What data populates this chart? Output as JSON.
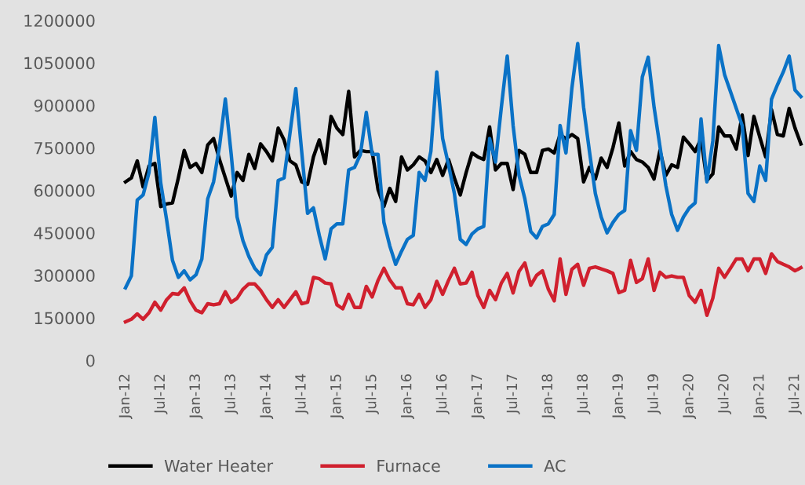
{
  "chart_data": {
    "type": "line",
    "categories": [
      "Jan-12",
      null,
      null,
      null,
      null,
      null,
      "Jul-12",
      null,
      null,
      null,
      null,
      null,
      "Jan-13",
      null,
      null,
      null,
      null,
      null,
      "Jul-13",
      null,
      null,
      null,
      null,
      null,
      "Jan-14",
      null,
      null,
      null,
      null,
      null,
      "Jul-14",
      null,
      null,
      null,
      null,
      null,
      "Jan-15",
      null,
      null,
      null,
      null,
      null,
      "Jul-15",
      null,
      null,
      null,
      null,
      null,
      "Jan-16",
      null,
      null,
      null,
      null,
      null,
      "Jul-16",
      null,
      null,
      null,
      null,
      null,
      "Jan-17",
      null,
      null,
      null,
      null,
      null,
      "Jul-17",
      null,
      null,
      null,
      null,
      null,
      "Jan-18",
      null,
      null,
      null,
      null,
      null,
      "Jul-18",
      null,
      null,
      null,
      null,
      null,
      "Jan-19",
      null,
      null,
      null,
      null,
      null,
      "Jul-19",
      null,
      null,
      null,
      null,
      null,
      "Jan-20",
      null,
      null,
      null,
      null,
      null,
      "Jul-20",
      null,
      null,
      null,
      null,
      null,
      "Jan-21",
      null,
      null,
      null,
      null,
      null,
      "Jul-21",
      null
    ],
    "series": [
      {
        "name": "Water Heater",
        "color": "#000000",
        "values": [
          630000,
          644000,
          704000,
          612000,
          686000,
          695000,
          543000,
          552000,
          556000,
          644000,
          741000,
          681000,
          695000,
          663000,
          760000,
          783000,
          709000,
          644000,
          580000,
          663000,
          635000,
          727000,
          677000,
          764000,
          737000,
          704000,
          820000,
          778000,
          704000,
          690000,
          630000,
          621000,
          718000,
          778000,
          695000,
          861000,
          820000,
          797000,
          949000,
          718000,
          741000,
          737000,
          737000,
          603000,
          543000,
          607000,
          561000,
          718000,
          672000,
          690000,
          718000,
          704000,
          663000,
          709000,
          653000,
          709000,
          644000,
          584000,
          663000,
          732000,
          718000,
          709000,
          824000,
          672000,
          695000,
          695000,
          603000,
          741000,
          727000,
          663000,
          663000,
          741000,
          746000,
          732000,
          797000,
          782000,
          797000,
          783000,
          630000,
          681000,
          640000,
          714000,
          681000,
          751000,
          838000,
          686000,
          737000,
          709000,
          700000,
          681000,
          640000,
          741000,
          653000,
          690000,
          681000,
          788000,
          764000,
          737000,
          783000,
          635000,
          658000,
          824000,
          792000,
          792000,
          746000,
          866000,
          723000,
          861000,
          788000,
          718000,
          885000,
          797000,
          792000,
          889000,
          820000,
          764000
        ]
      },
      {
        "name": "Furnace",
        "color": "#d0202e",
        "values": [
          136000,
          145000,
          164000,
          145000,
          168000,
          205000,
          177000,
          214000,
          236000,
          233000,
          256000,
          210000,
          177000,
          168000,
          200000,
          196000,
          200000,
          242000,
          205000,
          219000,
          251000,
          270000,
          270000,
          247000,
          214000,
          187000,
          214000,
          187000,
          214000,
          242000,
          200000,
          205000,
          293000,
          288000,
          273000,
          270000,
          196000,
          182000,
          233000,
          187000,
          187000,
          261000,
          224000,
          282000,
          325000,
          284000,
          256000,
          256000,
          200000,
          196000,
          233000,
          187000,
          214000,
          279000,
          233000,
          282000,
          325000,
          270000,
          273000,
          311000,
          228000,
          187000,
          247000,
          214000,
          273000,
          307000,
          238000,
          314000,
          344000,
          265000,
          300000,
          316000,
          251000,
          210000,
          358000,
          233000,
          321000,
          339000,
          265000,
          325000,
          330000,
          323000,
          316000,
          307000,
          239000,
          247000,
          353000,
          275000,
          288000,
          358000,
          247000,
          311000,
          293000,
          298000,
          293000,
          293000,
          228000,
          205000,
          247000,
          159000,
          219000,
          325000,
          293000,
          325000,
          358000,
          358000,
          316000,
          358000,
          358000,
          307000,
          376000,
          349000,
          339000,
          330000,
          316000,
          327000
        ]
      },
      {
        "name": "AC",
        "color": "#0a72c6",
        "values": [
          256000,
          298000,
          566000,
          584000,
          663000,
          857000,
          626000,
          496000,
          353000,
          293000,
          316000,
          284000,
          302000,
          358000,
          570000,
          630000,
          755000,
          922000,
          727000,
          506000,
          422000,
          367000,
          325000,
          302000,
          372000,
          399000,
          635000,
          644000,
          801000,
          959000,
          737000,
          519000,
          538000,
          441000,
          358000,
          464000,
          482000,
          482000,
          672000,
          681000,
          727000,
          875000,
          727000,
          727000,
          487000,
          404000,
          339000,
          385000,
          427000,
          441000,
          663000,
          635000,
          738000,
          1018000,
          783000,
          690000,
          589000,
          427000,
          409000,
          446000,
          464000,
          473000,
          783000,
          700000,
          894000,
          1074000,
          829000,
          653000,
          570000,
          455000,
          432000,
          473000,
          482000,
          515000,
          829000,
          732000,
          960000,
          1118000,
          894000,
          737000,
          589000,
          506000,
          450000,
          487000,
          515000,
          529000,
          811000,
          741000,
          1000000,
          1070000,
          894000,
          755000,
          617000,
          515000,
          459000,
          506000,
          538000,
          556000,
          852000,
          630000,
          774000,
          1111000,
          1009000,
          949000,
          889000,
          829000,
          589000,
          561000,
          686000,
          635000,
          922000,
          972000,
          1018000,
          1074000,
          954000,
          931000
        ]
      }
    ],
    "ylim": [
      0,
      1200000
    ],
    "yticks": [
      0,
      150000,
      300000,
      450000,
      600000,
      750000,
      900000,
      1050000,
      1200000
    ],
    "grid": false,
    "legend": "bottom",
    "marker": "none",
    "line_style": "solid"
  }
}
